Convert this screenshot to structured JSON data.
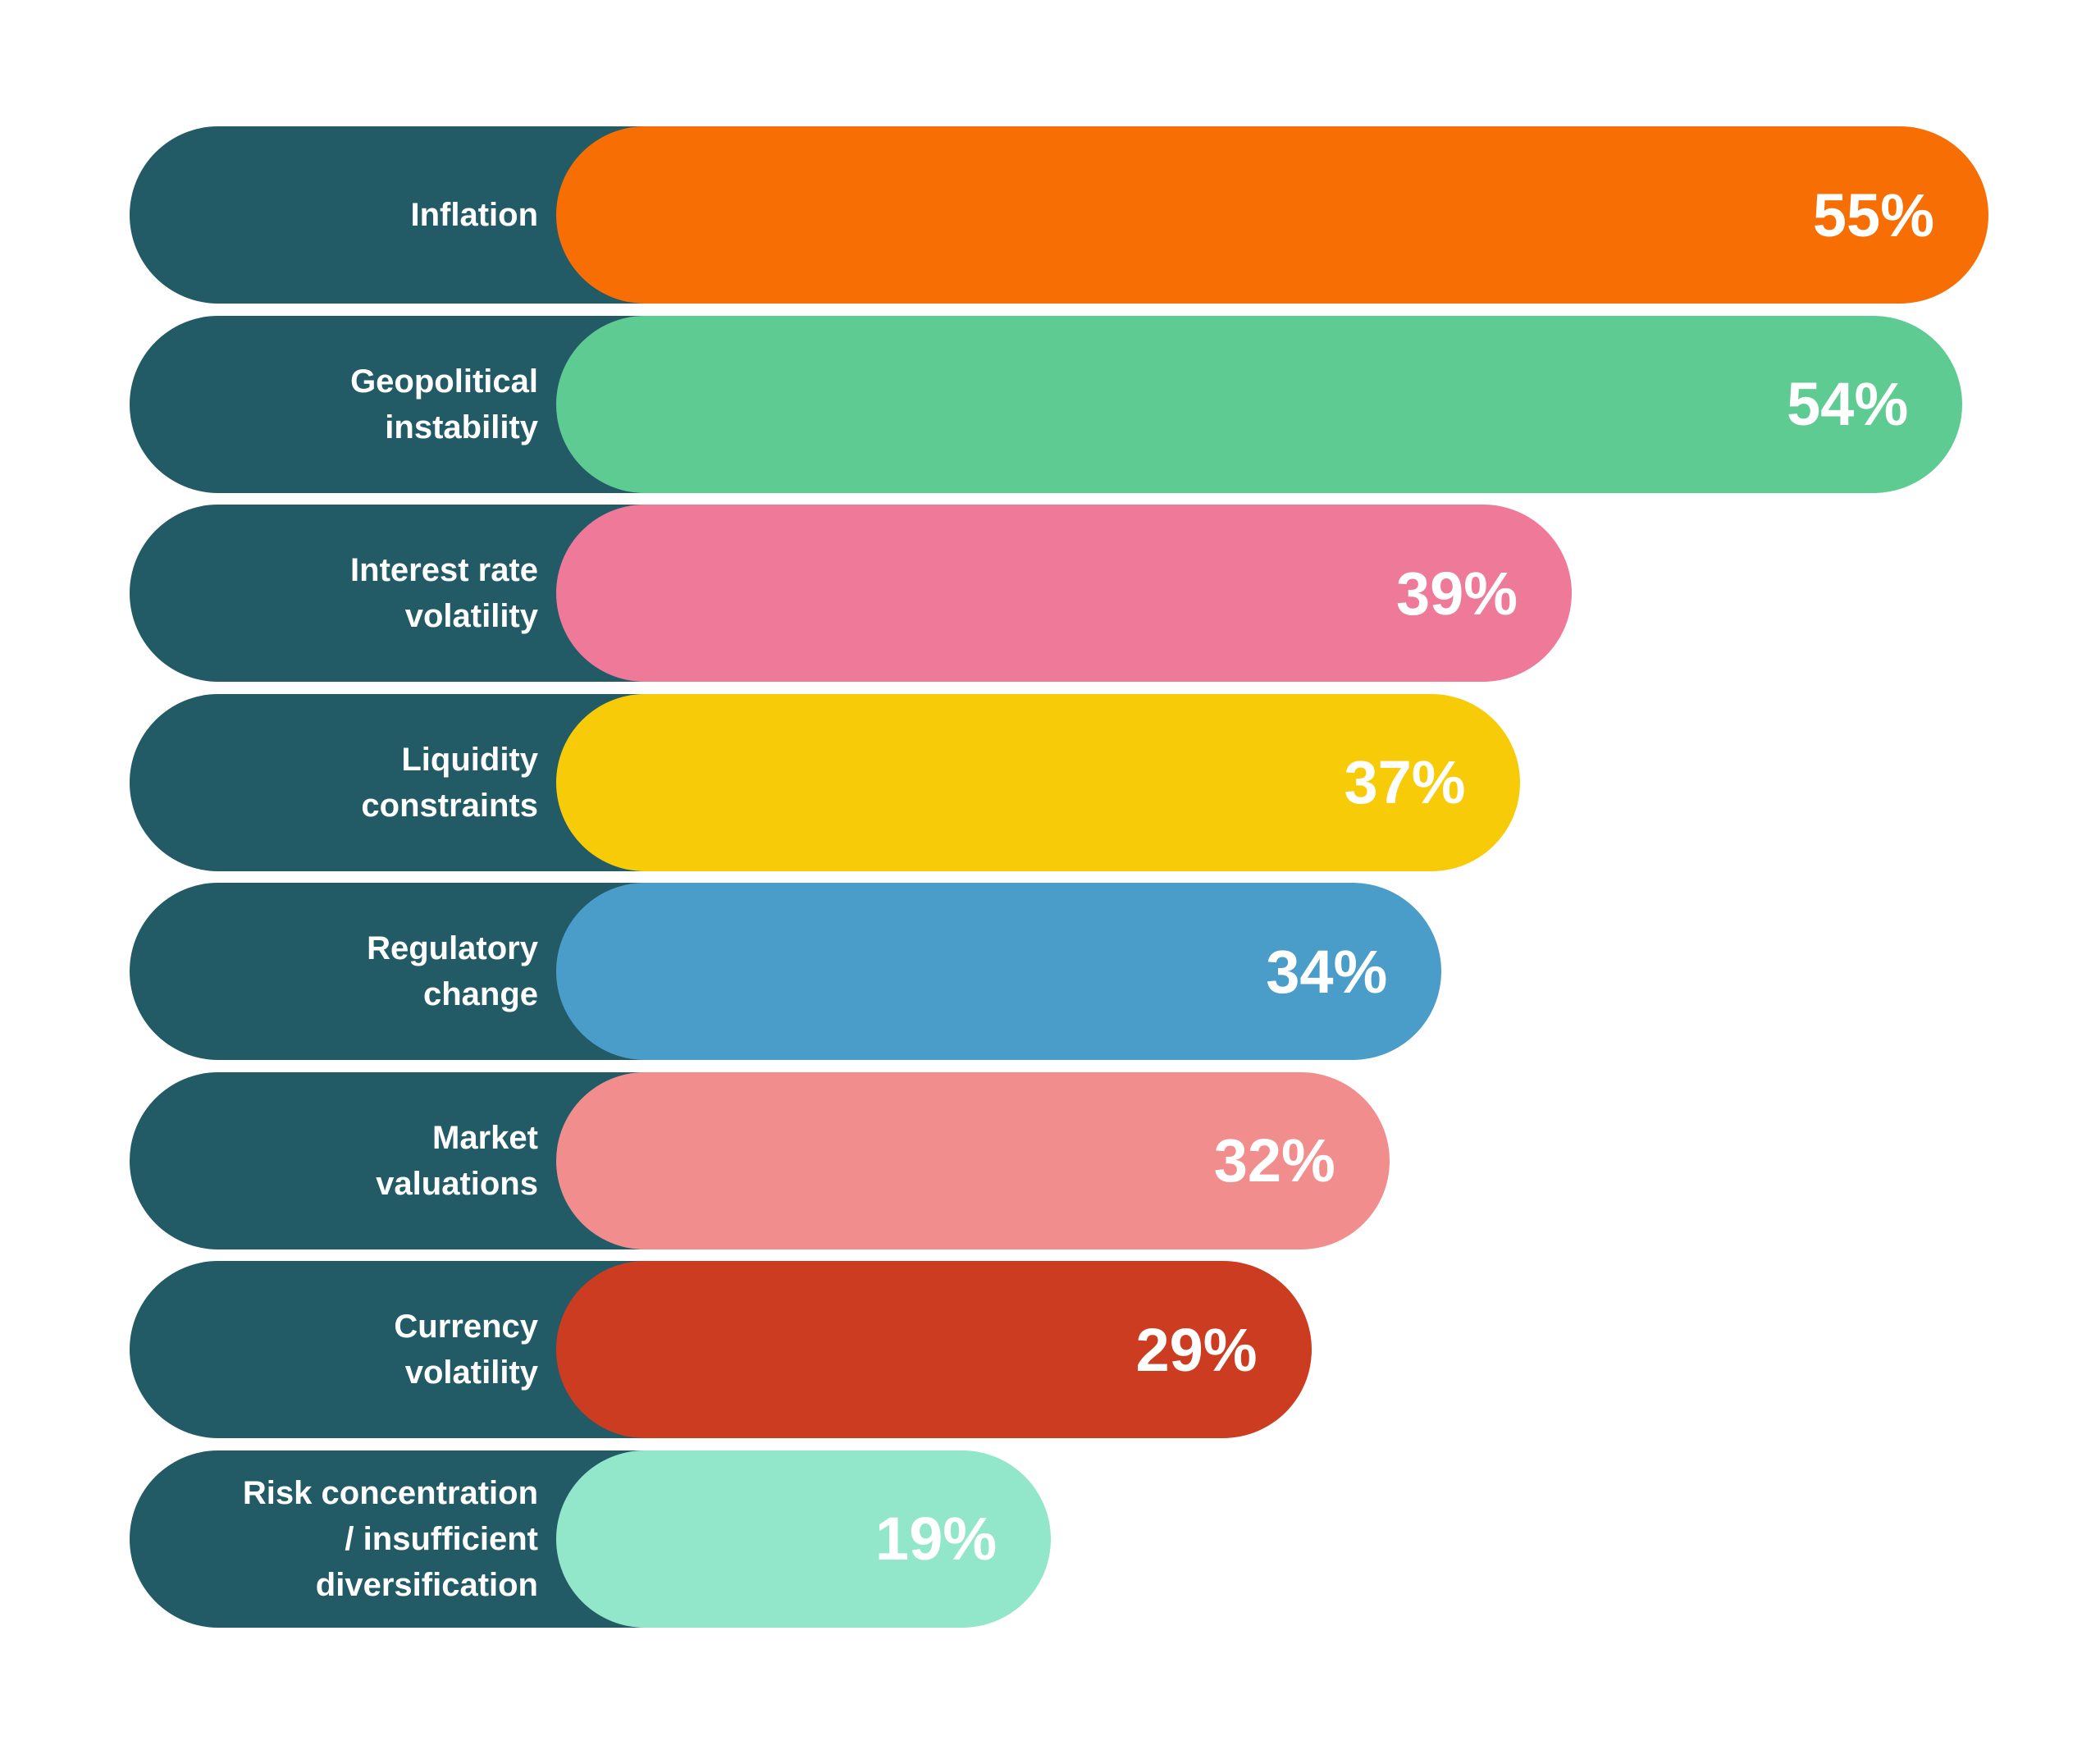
{
  "chart_data": {
    "type": "bar",
    "orientation": "horizontal",
    "categories": [
      "Inflation",
      "Geopolitical\ninstability",
      "Interest rate\nvolatility",
      "Liquidity\nconstraints",
      "Regulatory\nchange",
      "Market\nvaluations",
      "Currency\nvolatility",
      "Risk concentration\n/ insufficient\ndiversification"
    ],
    "values": [
      55,
      54,
      39,
      37,
      34,
      32,
      29,
      19
    ],
    "value_labels": [
      "55%",
      "54%",
      "39%",
      "37%",
      "34%",
      "32%",
      "29%",
      "19%"
    ],
    "colors": [
      "#f76e05",
      "#5ecb93",
      "#ef7999",
      "#f7cb08",
      "#4a9cc9",
      "#f28d8e",
      "#cc3c20",
      "#92e6c9"
    ],
    "label_background_color": "#225b66",
    "unit": "%",
    "xlim": [
      0,
      55
    ],
    "grid": false
  }
}
